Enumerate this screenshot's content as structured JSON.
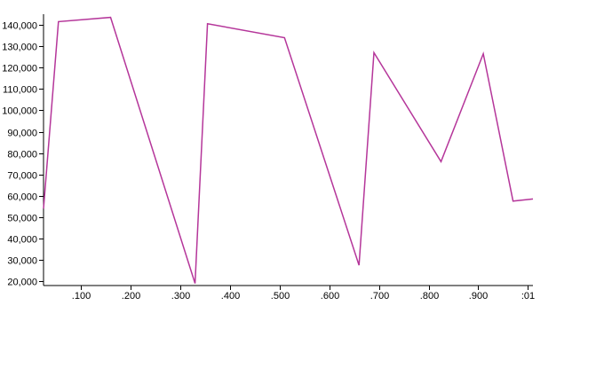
{
  "chart_data": {
    "type": "line",
    "xlim": [
      0.025,
      1.01
    ],
    "ylim": [
      18000,
      145000
    ],
    "grid": false,
    "x_tick_labels": [
      ".100",
      ".200",
      ".300",
      ".400",
      ".500",
      ".600",
      ".700",
      ".800",
      ".900",
      ":01"
    ],
    "x_tick_values": [
      0.1,
      0.2,
      0.3,
      0.4,
      0.5,
      0.6,
      0.7,
      0.8,
      0.9,
      1.0
    ],
    "y_tick_labels": [
      "20,000",
      "30,000",
      "40,000",
      "50,000",
      "60,000",
      "70,000",
      "80,000",
      "90,000",
      "100,000",
      "110,000",
      "120,000",
      "130,000",
      "140,000"
    ],
    "y_tick_values": [
      20000,
      30000,
      40000,
      50000,
      60000,
      70000,
      80000,
      90000,
      100000,
      110000,
      120000,
      130000,
      140000
    ],
    "series": [
      {
        "color": "#b5369a",
        "x": [
          0.025,
          0.055,
          0.16,
          0.33,
          0.355,
          0.51,
          0.66,
          0.69,
          0.825,
          0.91,
          0.97,
          1.01
        ],
        "y": [
          54000,
          141500,
          143500,
          19000,
          140500,
          134000,
          27500,
          127000,
          76000,
          126500,
          57500,
          58500
        ]
      }
    ]
  }
}
